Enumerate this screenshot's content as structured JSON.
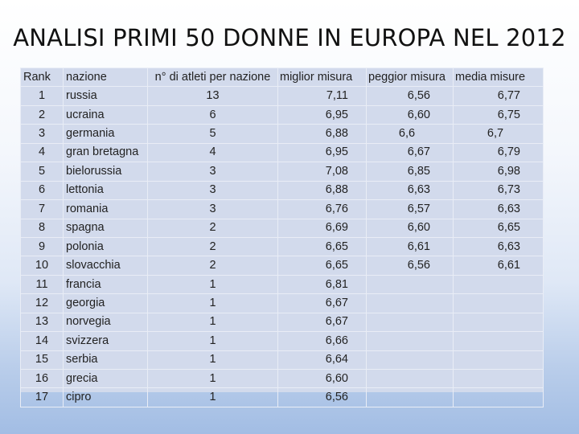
{
  "slide": {
    "title": "ANALISI PRIMI 50 DONNE IN EUROPA NEL 2012"
  },
  "table": {
    "headers": {
      "rank": "Rank",
      "nation": "nazione",
      "athletes": "n° di atleti per nazione",
      "best": "miglior misura",
      "worst": "peggior misura",
      "average": "media misure"
    },
    "rows": [
      {
        "rank": "1",
        "nation": "russia",
        "athletes": "13",
        "best": "7,11",
        "worst": "6,56",
        "average": "6,77"
      },
      {
        "rank": "2",
        "nation": "ucraina",
        "athletes": "6",
        "best": "6,95",
        "worst": "6,60",
        "average": "6,75"
      },
      {
        "rank": "3",
        "nation": "germania",
        "athletes": "5",
        "best": "6,88",
        "worst": "6,6",
        "average": "6,7"
      },
      {
        "rank": "4",
        "nation": "gran bretagna",
        "athletes": "4",
        "best": "6,95",
        "worst": "6,67",
        "average": "6,79"
      },
      {
        "rank": "5",
        "nation": "bielorussia",
        "athletes": "3",
        "best": "7,08",
        "worst": "6,85",
        "average": "6,98"
      },
      {
        "rank": "6",
        "nation": "lettonia",
        "athletes": "3",
        "best": "6,88",
        "worst": "6,63",
        "average": "6,73"
      },
      {
        "rank": "7",
        "nation": "romania",
        "athletes": "3",
        "best": "6,76",
        "worst": "6,57",
        "average": "6,63"
      },
      {
        "rank": "8",
        "nation": "spagna",
        "athletes": "2",
        "best": "6,69",
        "worst": "6,60",
        "average": "6,65"
      },
      {
        "rank": "9",
        "nation": "polonia",
        "athletes": "2",
        "best": "6,65",
        "worst": "6,61",
        "average": "6,63"
      },
      {
        "rank": "10",
        "nation": "slovacchia",
        "athletes": "2",
        "best": "6,65",
        "worst": "6,56",
        "average": "6,61"
      },
      {
        "rank": "11",
        "nation": "francia",
        "athletes": "1",
        "best": "6,81",
        "worst": "",
        "average": ""
      },
      {
        "rank": "12",
        "nation": "georgia",
        "athletes": "1",
        "best": "6,67",
        "worst": "",
        "average": ""
      },
      {
        "rank": "13",
        "nation": "norvegia",
        "athletes": "1",
        "best": "6,67",
        "worst": "",
        "average": ""
      },
      {
        "rank": "14",
        "nation": "svizzera",
        "athletes": "1",
        "best": "6,66",
        "worst": "",
        "average": ""
      },
      {
        "rank": "15",
        "nation": "serbia",
        "athletes": "1",
        "best": "6,64",
        "worst": "",
        "average": ""
      },
      {
        "rank": "16",
        "nation": "grecia",
        "athletes": "1",
        "best": "6,60",
        "worst": "",
        "average": ""
      },
      {
        "rank": "17",
        "nation": "cipro",
        "athletes": "1",
        "best": "6,56",
        "worst": "",
        "average": ""
      }
    ]
  }
}
